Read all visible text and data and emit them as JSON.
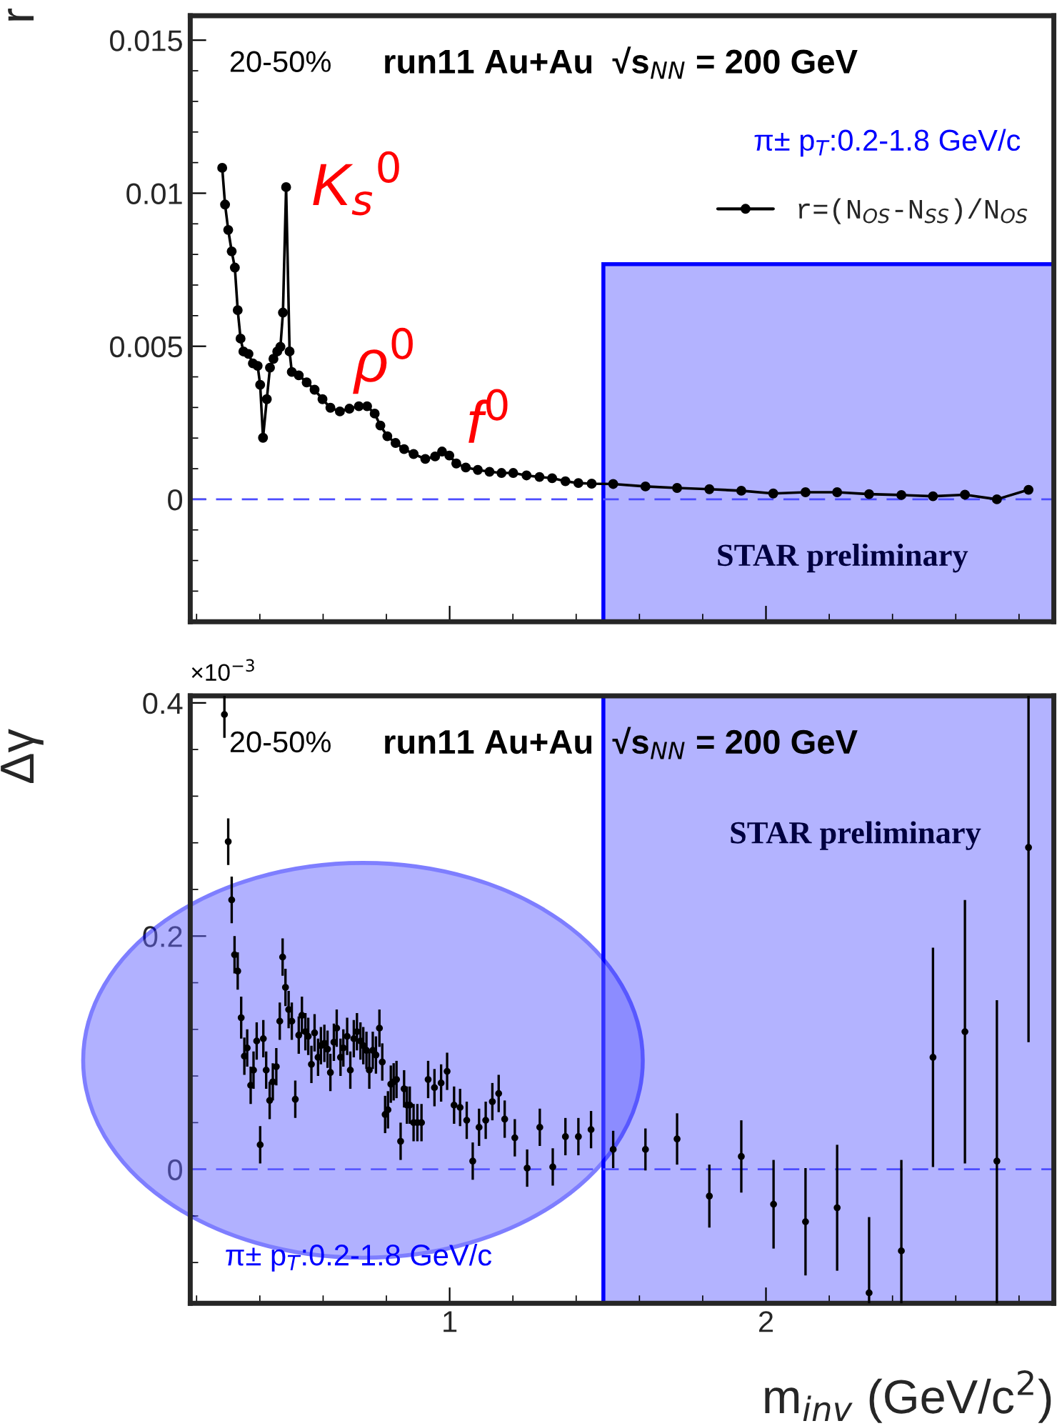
{
  "chart_data": [
    {
      "type": "line",
      "ylabel": "r",
      "xlim": [
        0.18,
        2.91
      ],
      "xticks": [
        1,
        2
      ],
      "ylim": [
        -0.004,
        0.0158
      ],
      "yticks": [
        0,
        0.005,
        0.01,
        0.015
      ],
      "tick_labels": "y",
      "grid": false,
      "legend": "top right",
      "marker": "circle",
      "line_style": "solid",
      "series": [
        {
          "name": "r=(N$_{OS}$-N$_{SS}$)/N$_{OS}$",
          "color": "#000000",
          "x": [
            0.281,
            0.29,
            0.3,
            0.311,
            0.321,
            0.33,
            0.339,
            0.348,
            0.364,
            0.378,
            0.393,
            0.401,
            0.41,
            0.422,
            0.432,
            0.443,
            0.455,
            0.465,
            0.473,
            0.483,
            0.494,
            0.501,
            0.523,
            0.548,
            0.573,
            0.598,
            0.623,
            0.653,
            0.683,
            0.713,
            0.739,
            0.763,
            0.781,
            0.803,
            0.829,
            0.856,
            0.886,
            0.923,
            0.954,
            0.976,
            0.999,
            1.021,
            1.051,
            1.089,
            1.126,
            1.164,
            1.201,
            1.243,
            1.284,
            1.324,
            1.366,
            1.407,
            1.449,
            1.517,
            1.619,
            1.719,
            1.821,
            1.922,
            2.023,
            2.125,
            2.225,
            2.326,
            2.428,
            2.528,
            2.629,
            2.73,
            2.83
          ],
          "values": [
            0.01083,
            0.00963,
            0.0088,
            0.0081,
            0.00757,
            0.00618,
            0.00525,
            0.00483,
            0.00475,
            0.00444,
            0.00436,
            0.00374,
            0.00201,
            0.00327,
            0.0043,
            0.00459,
            0.00483,
            0.00498,
            0.0061,
            0.0102,
            0.00483,
            0.00416,
            0.00405,
            0.00382,
            0.00358,
            0.00327,
            0.00299,
            0.00287,
            0.00296,
            0.00304,
            0.00304,
            0.0028,
            0.00241,
            0.00206,
            0.00184,
            0.00164,
            0.00148,
            0.00132,
            0.0014,
            0.00156,
            0.00143,
            0.00117,
            0.00104,
            0.00096,
            0.0009,
            0.00086,
            0.00086,
            0.00078,
            0.00073,
            0.00069,
            0.00059,
            0.00053,
            0.00051,
            0.0005,
            0.00042,
            0.00037,
            0.00033,
            0.00028,
            0.00019,
            0.00023,
            0.00023,
            0.00017,
            0.00014,
            0.0001,
            0.00015,
            0.0,
            0.00031
          ]
        }
      ],
      "ref_lines": [
        {
          "axis": "y",
          "value": 0,
          "color": "#4d4dff",
          "line_style": "dashed"
        }
      ],
      "bands": [
        {
          "axis": "x",
          "from": 1.486,
          "to": 2.91,
          "color": "#b3b3ff"
        }
      ],
      "annotations": [
        "20-50%",
        "run11 Au+Au  √s$_{NN}$ = 200 GeV",
        "π± p$_{T}$:0.2-1.8 GeV/c",
        "K$_{s}$$^{0}$",
        "ρ$^{0}$",
        "f$^{0}$",
        "STAR preliminary"
      ]
    },
    {
      "type": "scatter",
      "ylabel": "Δγ",
      "xlabel": "m$_{inv}$ (GeV/c$^{2}$)",
      "xlim": [
        0.18,
        2.91
      ],
      "xticks": [
        1,
        2
      ],
      "ylim": [
        -0.115,
        0.406
      ],
      "yticks": [
        0,
        0.2,
        0.4
      ],
      "grid": false,
      "marker": "circle",
      "series": [
        {
          "color": "#000000",
          "x": [
            0.288,
            0.3,
            0.311,
            0.32,
            0.33,
            0.341,
            0.351,
            0.36,
            0.371,
            0.38,
            0.39,
            0.401,
            0.411,
            0.42,
            0.431,
            0.441,
            0.452,
            0.463,
            0.472,
            0.481,
            0.491,
            0.501,
            0.512,
            0.523,
            0.533,
            0.544,
            0.553,
            0.563,
            0.573,
            0.584,
            0.593,
            0.604,
            0.614,
            0.623,
            0.634,
            0.643,
            0.655,
            0.664,
            0.676,
            0.686,
            0.697,
            0.707,
            0.718,
            0.727,
            0.737,
            0.746,
            0.757,
            0.767,
            0.778,
            0.787,
            0.796,
            0.805,
            0.814,
            0.823,
            0.832,
            0.845,
            0.856,
            0.865,
            0.874,
            0.886,
            0.898,
            0.911,
            0.932,
            0.952,
            0.973,
            0.992,
            1.014,
            1.033,
            1.054,
            1.073,
            1.093,
            1.114,
            1.135,
            1.155,
            1.174,
            1.206,
            1.245,
            1.285,
            1.326,
            1.366,
            1.407,
            1.447,
            1.517,
            1.619,
            1.719,
            1.821,
            1.922,
            2.024,
            2.125,
            2.225,
            2.326,
            2.428,
            2.528,
            2.629,
            2.73,
            2.83
          ],
          "values": [
            0.39,
            0.281,
            0.231,
            0.184,
            0.17,
            0.13,
            0.097,
            0.104,
            0.072,
            0.085,
            0.11,
            0.021,
            0.112,
            0.085,
            0.059,
            0.075,
            0.088,
            0.127,
            0.182,
            0.156,
            0.137,
            0.127,
            0.06,
            0.115,
            0.132,
            0.118,
            0.114,
            0.09,
            0.117,
            0.096,
            0.106,
            0.108,
            0.103,
            0.083,
            0.109,
            0.121,
            0.096,
            0.104,
            0.114,
            0.085,
            0.112,
            0.118,
            0.11,
            0.106,
            0.102,
            0.085,
            0.102,
            0.098,
            0.121,
            0.092,
            0.047,
            0.051,
            0.073,
            0.075,
            0.077,
            0.024,
            0.069,
            0.055,
            0.055,
            0.04,
            0.04,
            0.04,
            0.077,
            0.07,
            0.074,
            0.084,
            0.055,
            0.053,
            0.042,
            0.007,
            0.036,
            0.042,
            0.058,
            0.065,
            0.043,
            0.027,
            0.001,
            0.036,
            0.002,
            0.028,
            0.028,
            0.034,
            0.017,
            0.017,
            0.026,
            -0.023,
            0.011,
            -0.03,
            -0.045,
            -0.033,
            -0.106,
            -0.07,
            0.096,
            0.118,
            0.007,
            0.276
          ],
          "errors": [
            0.02,
            0.02,
            0.02,
            0.016,
            0.016,
            0.018,
            0.016,
            0.016,
            0.016,
            0.016,
            0.016,
            0.016,
            0.016,
            0.016,
            0.016,
            0.016,
            0.016,
            0.016,
            0.016,
            0.016,
            0.016,
            0.016,
            0.016,
            0.016,
            0.016,
            0.016,
            0.016,
            0.016,
            0.016,
            0.016,
            0.016,
            0.016,
            0.016,
            0.016,
            0.016,
            0.016,
            0.016,
            0.016,
            0.016,
            0.016,
            0.016,
            0.016,
            0.016,
            0.016,
            0.016,
            0.016,
            0.016,
            0.016,
            0.016,
            0.016,
            0.016,
            0.016,
            0.016,
            0.016,
            0.016,
            0.016,
            0.016,
            0.016,
            0.016,
            0.016,
            0.016,
            0.016,
            0.016,
            0.016,
            0.016,
            0.016,
            0.016,
            0.016,
            0.016,
            0.016,
            0.016,
            0.016,
            0.016,
            0.016,
            0.016,
            0.016,
            0.016,
            0.016,
            0.016,
            0.016,
            0.016,
            0.016,
            0.016,
            0.018,
            0.022,
            0.027,
            0.031,
            0.038,
            0.046,
            0.054,
            0.065,
            0.078,
            0.094,
            0.113,
            0.138,
            0.167
          ]
        }
      ],
      "ref_lines": [
        {
          "axis": "y",
          "value": 0,
          "color": "#4d4dff",
          "line_style": "dashed"
        }
      ],
      "bands": [
        {
          "axis": "x",
          "from": 1.486,
          "to": 2.91,
          "color": "#b3b3ff"
        }
      ],
      "annotations": [
        "20-50%",
        "run11 Au+Au  √s$_{NN}$ = 200 GeV",
        "STAR preliminary",
        "π± p$_{T}$:0.2-1.8 GeV/c",
        "×10$^{−3}$"
      ]
    }
  ]
}
